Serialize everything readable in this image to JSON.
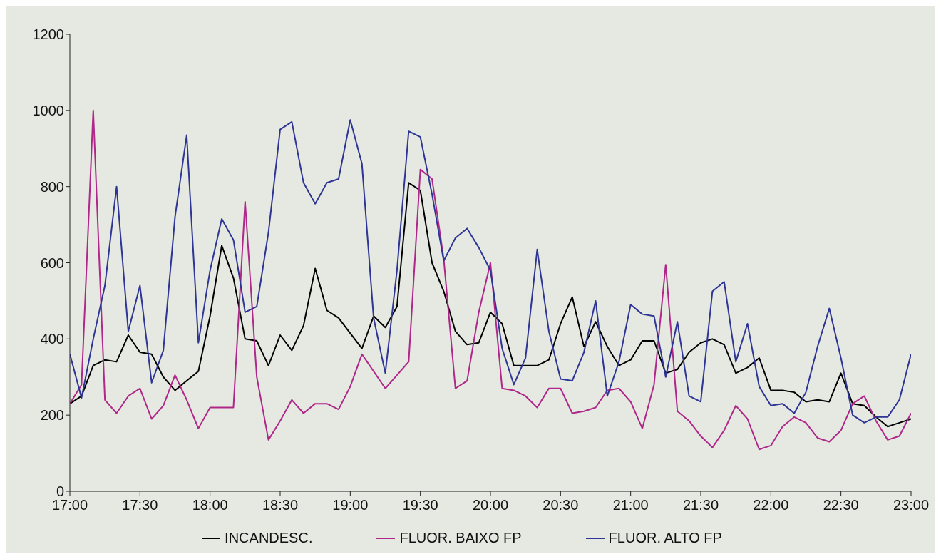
{
  "chart_data": {
    "type": "line",
    "x": [
      17,
      17.0833,
      17.1667,
      17.25,
      17.3333,
      17.4167,
      17.5,
      17.5833,
      17.6667,
      17.75,
      17.8333,
      17.9167,
      18,
      18.0833,
      18.1667,
      18.25,
      18.3333,
      18.4167,
      18.5,
      18.5833,
      18.6667,
      18.75,
      18.8333,
      18.9167,
      19,
      19.0833,
      19.1667,
      19.25,
      19.3333,
      19.4167,
      19.5,
      19.5833,
      19.6667,
      19.75,
      19.8333,
      19.9167,
      20,
      20.0833,
      20.1667,
      20.25,
      20.3333,
      20.4167,
      20.5,
      20.5833,
      20.6667,
      20.75,
      20.8333,
      20.9167,
      21,
      21.0833,
      21.1667,
      21.25,
      21.3333,
      21.4167,
      21.5,
      21.5833,
      21.6667,
      21.75,
      21.8333,
      21.9167,
      22,
      22.0833,
      22.1667,
      22.25,
      22.3333,
      22.4167,
      22.5,
      22.5833,
      22.6667,
      22.75,
      22.8333,
      22.9167,
      23
    ],
    "series": [
      {
        "name": "INCANDESC.",
        "color": "#000000",
        "values": [
          230,
          250,
          330,
          345,
          340,
          410,
          365,
          360,
          300,
          265,
          290,
          315,
          460,
          645,
          560,
          400,
          395,
          330,
          410,
          370,
          435,
          585,
          475,
          455,
          415,
          375,
          460,
          430,
          485,
          810,
          790,
          600,
          525,
          420,
          385,
          390,
          470,
          440,
          330,
          330,
          330,
          345,
          440,
          510,
          380,
          445,
          380,
          330,
          345,
          395,
          395,
          310,
          320,
          365,
          390,
          400,
          385,
          310,
          325,
          350,
          265,
          265,
          260,
          235,
          240,
          235,
          310,
          230,
          225,
          195,
          170,
          180,
          190
        ]
      },
      {
        "name": "FLUOR. BAIXO FP",
        "color": "#b0278a",
        "values": [
          230,
          280,
          1000,
          240,
          205,
          250,
          270,
          190,
          225,
          305,
          240,
          165,
          220,
          220,
          220,
          760,
          300,
          135,
          185,
          240,
          205,
          230,
          230,
          215,
          275,
          360,
          315,
          270,
          305,
          340,
          845,
          820,
          610,
          270,
          290,
          470,
          600,
          270,
          265,
          250,
          220,
          270,
          270,
          205,
          210,
          220,
          265,
          270,
          235,
          165,
          280,
          595,
          210,
          185,
          145,
          115,
          160,
          225,
          190,
          110,
          120,
          170,
          195,
          180,
          140,
          130,
          160,
          230,
          250,
          185,
          135,
          145,
          205
        ]
      },
      {
        "name": "FLUOR. ALTO FP",
        "color": "#2e3595",
        "values": [
          360,
          245,
          400,
          540,
          800,
          420,
          540,
          285,
          370,
          720,
          935,
          390,
          580,
          715,
          660,
          470,
          485,
          680,
          950,
          970,
          810,
          755,
          810,
          820,
          975,
          860,
          455,
          310,
          580,
          945,
          930,
          780,
          605,
          665,
          690,
          640,
          580,
          375,
          280,
          350,
          635,
          420,
          295,
          290,
          365,
          500,
          250,
          340,
          490,
          465,
          460,
          300,
          445,
          250,
          235,
          525,
          550,
          340,
          440,
          275,
          225,
          230,
          205,
          260,
          380,
          480,
          350,
          200,
          180,
          195,
          195,
          240,
          360
        ]
      }
    ],
    "xlim": [
      17,
      23
    ],
    "xticks": [
      {
        "value": 17,
        "label": "17:00"
      },
      {
        "value": 17.5,
        "label": "17:30"
      },
      {
        "value": 18,
        "label": "18:00"
      },
      {
        "value": 18.5,
        "label": "18:30"
      },
      {
        "value": 19,
        "label": "19:00"
      },
      {
        "value": 19.5,
        "label": "19:30"
      },
      {
        "value": 20,
        "label": "20:00"
      },
      {
        "value": 20.5,
        "label": "20:30"
      },
      {
        "value": 21,
        "label": "21:00"
      },
      {
        "value": 21.5,
        "label": "21:30"
      },
      {
        "value": 22,
        "label": "22:00"
      },
      {
        "value": 22.5,
        "label": "22:30"
      },
      {
        "value": 23,
        "label": "23:00"
      }
    ],
    "ylim": [
      0,
      1200
    ],
    "yticks": [
      0,
      200,
      400,
      600,
      800,
      1000,
      1200
    ],
    "grid": false,
    "legend": "bottom",
    "marker": "none",
    "line_style": "solid"
  }
}
